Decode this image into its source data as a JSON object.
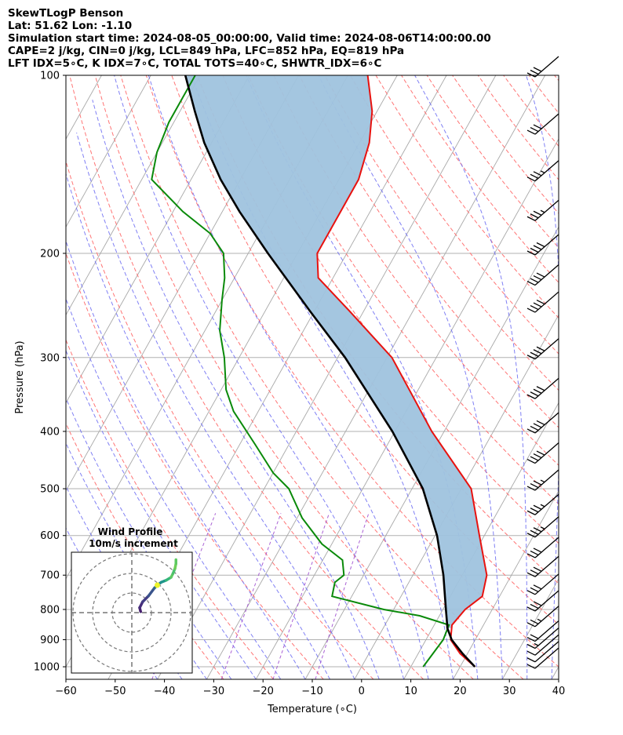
{
  "header": {
    "title": "SkewTLogP Benson",
    "location": "Lat: 51.62   Lon: -1.10",
    "times": "Simulation start time: 2024-08-05_00:00:00, Valid time: 2024-08-06T14:00:00.00",
    "cape_line": "CAPE=2 j/kg, CIN=0 j/kg, LCL=849 hPa, LFC=852 hPa, EQ=819 hPa",
    "index_line": "LFT IDX=5∘C, K IDX=7∘C, TOTAL TOTS=40∘C, SHWTR_IDX=6∘C"
  },
  "chart_data": {
    "type": "skewt",
    "xlabel": "Temperature (∘C)",
    "ylabel": "Pressure (hPa)",
    "xlim": [
      -60,
      40
    ],
    "ylim": [
      1050,
      100
    ],
    "x_ticks": [
      "−60",
      "−50",
      "−40",
      "−30",
      "−20",
      "−10",
      "0",
      "10",
      "20",
      "30",
      "40"
    ],
    "x_tick_values": [
      -60,
      -50,
      -40,
      -30,
      -20,
      -10,
      0,
      10,
      20,
      30,
      40
    ],
    "y_ticks": [
      "100",
      "200",
      "300",
      "400",
      "500",
      "600",
      "700",
      "800",
      "900",
      "1000"
    ],
    "y_tick_values": [
      100,
      200,
      300,
      400,
      500,
      600,
      700,
      800,
      900,
      1000
    ],
    "colors": {
      "temperature": "#e8120f",
      "dewpoint": "#0a8a0a",
      "parcel": "#000000",
      "shading": "#9fc3de",
      "isotherm": "#a8a8a8",
      "dry_adiabat": "#ff7575",
      "moist_adiabat": "#6a6af2",
      "mixing_ratio": "#a050d0"
    },
    "temperature": {
      "name": "Temperature",
      "p": [
        1000,
        950,
        900,
        850,
        800,
        760,
        700,
        600,
        500,
        400,
        300,
        250,
        220,
        200,
        170,
        150,
        130,
        115,
        100
      ],
      "t": [
        23.0,
        18.5,
        15.0,
        13.6,
        14.5,
        16.5,
        15.0,
        9.0,
        2.0,
        -12.5,
        -29.0,
        -43.0,
        -53.0,
        -56.0,
        -56.0,
        -56.0,
        -58.0,
        -61.0,
        -66.0
      ]
    },
    "dewpoint": {
      "name": "Dewpoint",
      "p": [
        1000,
        900,
        850,
        820,
        800,
        760,
        720,
        700,
        660,
        620,
        560,
        500,
        470,
        420,
        370,
        340,
        300,
        270,
        240,
        220,
        200,
        185,
        170,
        150,
        135,
        120,
        100
      ],
      "td": [
        12.5,
        13.5,
        13.0,
        6.0,
        -2.0,
        -14.0,
        -15.0,
        -14.0,
        -16.0,
        -22.0,
        -29.0,
        -35.0,
        -40.0,
        -47.0,
        -55.0,
        -59.0,
        -63.0,
        -67.0,
        -70.0,
        -72.0,
        -75.0,
        -80.0,
        -88.0,
        -98.0,
        -100.0,
        -101.0,
        -101.0
      ]
    },
    "parcel": {
      "name": "Parcel",
      "p": [
        1000,
        950,
        900,
        860,
        849,
        800,
        700,
        600,
        500,
        400,
        300,
        250,
        200,
        170,
        150,
        130,
        115,
        100
      ],
      "t": [
        23.0,
        19.0,
        15.2,
        13.0,
        12.6,
        10.6,
        6.2,
        0.4,
        -7.8,
        -20.5,
        -38.5,
        -51.0,
        -66.0,
        -76.5,
        -84.0,
        -91.5,
        -97.0,
        -103.0
      ]
    },
    "wind_barbs": [
      {
        "p": 1000,
        "speed_kt": 10
      },
      {
        "p": 975,
        "speed_kt": 10
      },
      {
        "p": 950,
        "speed_kt": 10
      },
      {
        "p": 925,
        "speed_kt": 15
      },
      {
        "p": 900,
        "speed_kt": 20
      },
      {
        "p": 850,
        "speed_kt": 25
      },
      {
        "p": 800,
        "speed_kt": 30
      },
      {
        "p": 750,
        "speed_kt": 30
      },
      {
        "p": 700,
        "speed_kt": 30
      },
      {
        "p": 650,
        "speed_kt": 30
      },
      {
        "p": 600,
        "speed_kt": 35
      },
      {
        "p": 550,
        "speed_kt": 35
      },
      {
        "p": 500,
        "speed_kt": 35
      },
      {
        "p": 450,
        "speed_kt": 40
      },
      {
        "p": 400,
        "speed_kt": 40
      },
      {
        "p": 350,
        "speed_kt": 40
      },
      {
        "p": 300,
        "speed_kt": 40
      },
      {
        "p": 250,
        "speed_kt": 40
      },
      {
        "p": 225,
        "speed_kt": 40
      },
      {
        "p": 200,
        "speed_kt": 40
      },
      {
        "p": 175,
        "speed_kt": 35
      },
      {
        "p": 150,
        "speed_kt": 35
      },
      {
        "p": 125,
        "speed_kt": 30
      },
      {
        "p": 100,
        "speed_kt": 30
      }
    ],
    "hodograph": {
      "title": "Wind Profile",
      "subtitle": "10m/s increment",
      "u": [
        4.5,
        4.0,
        5.5,
        8.5,
        11.5,
        13.0,
        15.0,
        17.5,
        20.0,
        21.0,
        22.0,
        22.5,
        22.5
      ],
      "v": [
        0.5,
        2.5,
        5.5,
        8.5,
        12.5,
        14.0,
        15.5,
        16.5,
        18.0,
        20.0,
        22.5,
        25.0,
        27.0
      ],
      "colors": [
        "#46206e",
        "#472d7b",
        "#433d84",
        "#3a548c",
        "#31688e",
        "#277f8e",
        "#1f958b",
        "#35b779",
        "#5ec962",
        "#4ac16d",
        "#6ece58",
        "#5ec962",
        "#65cb5e"
      ],
      "highlight_color": "#ecf52a"
    }
  }
}
